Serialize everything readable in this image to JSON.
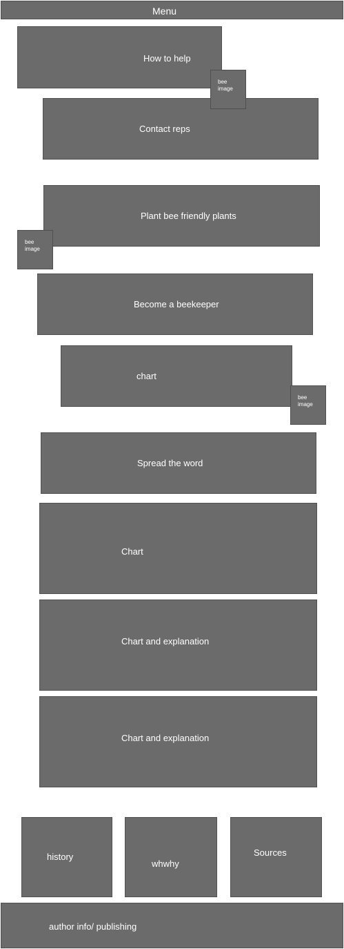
{
  "menu": {
    "label": "Menu"
  },
  "sections": {
    "how_to_help": "How to help",
    "contact_reps": "Contact reps",
    "plant_bee_friendly": "Plant bee friendly plants",
    "become_beekeeper": "Become a beekeeper",
    "chart_small": "chart",
    "spread_the_word": "Spread the word",
    "chart_large": "Chart",
    "chart_explanation_1": "Chart and explanation",
    "chart_explanation_2": "Chart and explanation"
  },
  "bee_images": {
    "label": "bee image"
  },
  "footer_links": {
    "history": "history",
    "whwhy": "whwhy",
    "sources": "Sources"
  },
  "footer": {
    "author": "author info/ publishing"
  }
}
